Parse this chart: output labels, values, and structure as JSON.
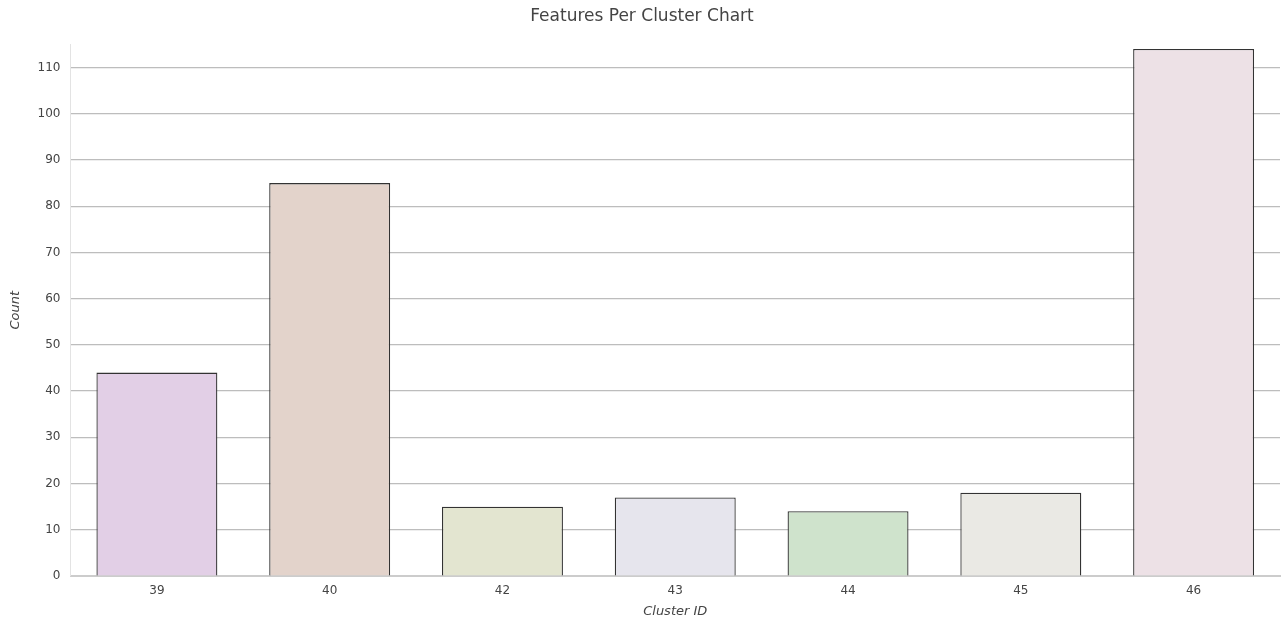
{
  "chart_data": {
    "type": "bar",
    "title": "Features Per Cluster Chart",
    "xlabel": "Cluster ID",
    "ylabel": "Count",
    "categories": [
      "39",
      "40",
      "42",
      "43",
      "44",
      "45",
      "46"
    ],
    "values": [
      44,
      85,
      15,
      17,
      14,
      18,
      114
    ],
    "colors": [
      "#e2cfe6",
      "#e3d3cb",
      "#e3e5d0",
      "#e6e5ed",
      "#cfe3cc",
      "#eae9e4",
      "#ede1e6"
    ],
    "ylim": [
      0,
      115
    ],
    "yticks": [
      0,
      10,
      20,
      30,
      40,
      50,
      60,
      70,
      80,
      90,
      100,
      110
    ],
    "grid": "y",
    "legend": false
  }
}
